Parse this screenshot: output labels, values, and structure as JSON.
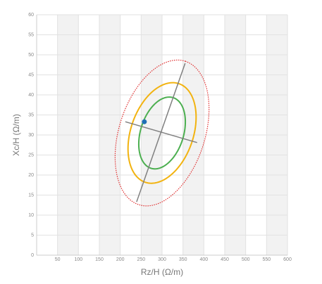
{
  "chart_data": {
    "type": "ellipse",
    "x_label": "Rz/H (Ω/m)",
    "y_label": "Xc/H (Ω/m)",
    "xlim": [
      0,
      600
    ],
    "xticks": [
      50,
      100,
      150,
      200,
      250,
      300,
      350,
      400,
      450,
      500,
      550,
      600
    ],
    "ylim": [
      0,
      60
    ],
    "yticks": [
      0,
      5,
      10,
      15,
      20,
      25,
      30,
      35,
      40,
      45,
      50,
      55,
      60
    ],
    "grid": true,
    "shaded_bands": true,
    "ellipses": [
      {
        "color": "#e03030",
        "style": "dotted",
        "center": [
          300,
          30.5
        ],
        "half_axis_1": [
          55.6,
          17.9
        ],
        "half_axis_2": [
          97.6,
          -3.3
        ]
      },
      {
        "color": "#f2b310",
        "style": "solid",
        "center": [
          300,
          30.5
        ],
        "half_axis_1": [
          40.4,
          12.3
        ],
        "half_axis_2": [
          70.7,
          -2.5
        ]
      },
      {
        "color": "#4caf50",
        "style": "solid",
        "center": [
          300,
          30.5
        ],
        "half_axis_1": [
          26.9,
          8.8
        ],
        "half_axis_2": [
          48.8,
          -1.7
        ]
      }
    ],
    "axis_lines": [
      {
        "color": "#808080",
        "from": [
          239.1,
          13.3
        ],
        "to": [
          355.2,
          47.9
        ]
      },
      {
        "color": "#808080",
        "from": [
          212.1,
          33.3
        ],
        "to": [
          383.8,
          28.1
        ]
      }
    ],
    "points": [
      {
        "x": 257.6,
        "y": 33.3,
        "color": "#1f6fb4"
      }
    ]
  }
}
